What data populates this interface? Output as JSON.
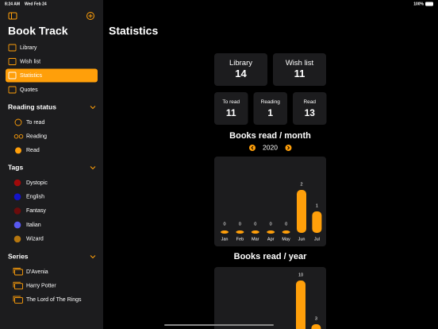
{
  "status_bar": {
    "time": "8:24 AM",
    "date": "Wed Feb 24",
    "battery": "100%"
  },
  "sidebar": {
    "title": "Book Track",
    "menu": [
      "Library",
      "Wish list",
      "Statistics",
      "Quotes"
    ],
    "selected": 2,
    "sections": [
      {
        "title": "Reading status",
        "items": [
          "To read",
          "Reading",
          "Read"
        ]
      },
      {
        "title": "Tags",
        "items": [
          "Dystopic",
          "English",
          "Fantasy",
          "Italian",
          "Wizard"
        ],
        "colors": [
          "#a00a0a",
          "#1414c8",
          "#6b0c0c",
          "#5858f0",
          "#b5760f"
        ]
      },
      {
        "title": "Series",
        "items": [
          "D'Avenia",
          "Harry Potter",
          "The Lord of The Rings"
        ]
      }
    ]
  },
  "main": {
    "title": "Statistics",
    "cards": [
      {
        "label": "Library",
        "value": 14
      },
      {
        "label": "Wish list",
        "value": 11
      }
    ],
    "status_cards": [
      {
        "label": "To read",
        "value": 11
      },
      {
        "label": "Reading",
        "value": 1
      },
      {
        "label": "Read",
        "value": 13
      }
    ],
    "monthly": {
      "type": "bar",
      "title": "Books read / month",
      "year": 2020,
      "color": "#ff9f0a",
      "categories": [
        "Jan",
        "Feb",
        "Mar",
        "Apr",
        "May",
        "Jun",
        "Jul"
      ],
      "values": [
        0,
        0,
        0,
        0,
        0,
        2,
        1
      ]
    },
    "yearly": {
      "type": "bar",
      "title": "Books read / year",
      "color": "#ff9f0a",
      "categories": [
        null,
        null
      ],
      "values": [
        10,
        3
      ]
    }
  }
}
